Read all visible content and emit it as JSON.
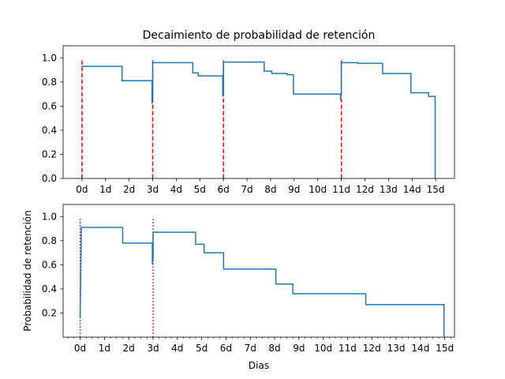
{
  "chart_data": [
    {
      "type": "line",
      "title": "Decaimiento de probabilidad de retención",
      "xlabel": "",
      "ylabel": "",
      "xlim": [
        -0.8,
        15.8
      ],
      "ylim": [
        0,
        1.1
      ],
      "xticks": [
        0,
        1,
        2,
        3,
        4,
        5,
        6,
        7,
        8,
        9,
        10,
        11,
        12,
        13,
        14,
        15
      ],
      "xtick_labels": [
        "0d",
        "1d",
        "2d",
        "3d",
        "4d",
        "5d",
        "6d",
        "7d",
        "8d",
        "9d",
        "10d",
        "11d",
        "12d",
        "13d",
        "14d",
        "15d"
      ],
      "yticks": [
        0.0,
        0.2,
        0.4,
        0.6,
        0.8,
        1.0
      ],
      "ytick_labels": [
        "0.0",
        "0.2",
        "0.4",
        "0.6",
        "0.8",
        "1.0"
      ],
      "grid": false,
      "series": [
        {
          "color": "#1f77b4",
          "style": "step",
          "points": [
            [
              0,
              0.93
            ],
            [
              1.7,
              0.93
            ],
            [
              1.7,
              0.81
            ],
            [
              2.97,
              0.81
            ],
            [
              2.97,
              0.62
            ],
            [
              3.0,
              0.67
            ],
            [
              3.0,
              0.96
            ],
            [
              4.7,
              0.96
            ],
            [
              4.7,
              0.875
            ],
            [
              4.93,
              0.875
            ],
            [
              4.93,
              0.85
            ],
            [
              5.97,
              0.85
            ],
            [
              5.97,
              0.68
            ],
            [
              6.0,
              0.7
            ],
            [
              6.0,
              0.965
            ],
            [
              7.73,
              0.965
            ],
            [
              7.73,
              0.89
            ],
            [
              8.05,
              0.89
            ],
            [
              8.05,
              0.87
            ],
            [
              8.7,
              0.87
            ],
            [
              8.7,
              0.86
            ],
            [
              8.97,
              0.86
            ],
            [
              8.97,
              0.7
            ],
            [
              10.97,
              0.7
            ],
            [
              10.97,
              0.65
            ],
            [
              11.0,
              0.72
            ],
            [
              11.0,
              0.96
            ],
            [
              11.7,
              0.96
            ],
            [
              11.7,
              0.955
            ],
            [
              12.75,
              0.955
            ],
            [
              12.75,
              0.87
            ],
            [
              13.95,
              0.87
            ],
            [
              13.95,
              0.71
            ],
            [
              14.7,
              0.71
            ],
            [
              14.7,
              0.68
            ],
            [
              14.98,
              0.68
            ],
            [
              14.98,
              0.0
            ]
          ]
        }
      ],
      "vlines": [
        {
          "x": 0,
          "ymin": 0,
          "ymax": 0.99,
          "color": "#ff0000",
          "style": "dashed"
        },
        {
          "x": 3,
          "ymin": 0,
          "ymax": 0.99,
          "color": "#ff0000",
          "style": "dashed"
        },
        {
          "x": 6,
          "ymin": 0,
          "ymax": 0.99,
          "color": "#ff0000",
          "style": "dashed"
        },
        {
          "x": 11,
          "ymin": 0,
          "ymax": 0.99,
          "color": "#ff0000",
          "style": "dashed"
        }
      ]
    },
    {
      "type": "line",
      "title": "",
      "xlabel": "Dias",
      "ylabel": "Probabilidad de retención",
      "xlim": [
        -0.7,
        15.4
      ],
      "ylim": [
        0,
        1.1
      ],
      "xticks": [
        0,
        1,
        2,
        3,
        4,
        5,
        6,
        7,
        8,
        9,
        10,
        11,
        12,
        13,
        14,
        15
      ],
      "xtick_labels": [
        "0d",
        "1d",
        "2d",
        "3d",
        "4d",
        "5d",
        "6d",
        "7d",
        "8d",
        "9d",
        "10d",
        "11d",
        "12d",
        "13d",
        "14d",
        "15d"
      ],
      "xminor_step": 0.25,
      "yticks": [
        0.2,
        0.4,
        0.6,
        0.8,
        1.0
      ],
      "ytick_labels": [
        "0.2",
        "0.4",
        "0.6",
        "0.8",
        "1.0"
      ],
      "grid": false,
      "series": [
        {
          "color": "#1f77b4",
          "style": "step",
          "points": [
            [
              0,
              0.16
            ],
            [
              0.05,
              0.91
            ],
            [
              1.75,
              0.91
            ],
            [
              1.75,
              0.78
            ],
            [
              2.97,
              0.78
            ],
            [
              2.97,
              0.6
            ],
            [
              3.0,
              0.65
            ],
            [
              3.0,
              0.87
            ],
            [
              4.75,
              0.87
            ],
            [
              4.75,
              0.77
            ],
            [
              5.1,
              0.77
            ],
            [
              5.1,
              0.7
            ],
            [
              5.9,
              0.7
            ],
            [
              5.9,
              0.565
            ],
            [
              8.05,
              0.565
            ],
            [
              8.05,
              0.44
            ],
            [
              8.75,
              0.44
            ],
            [
              8.75,
              0.36
            ],
            [
              11.75,
              0.36
            ],
            [
              11.75,
              0.27
            ],
            [
              14.97,
              0.27
            ],
            [
              14.97,
              0.0
            ]
          ]
        }
      ],
      "vlines": [
        {
          "x": 0,
          "ymin": 0,
          "ymax": 0.99,
          "color": "#ff0000",
          "style": "dotted"
        },
        {
          "x": 3,
          "ymin": 0,
          "ymax": 0.99,
          "color": "#ff0000",
          "style": "dotted"
        }
      ]
    }
  ]
}
